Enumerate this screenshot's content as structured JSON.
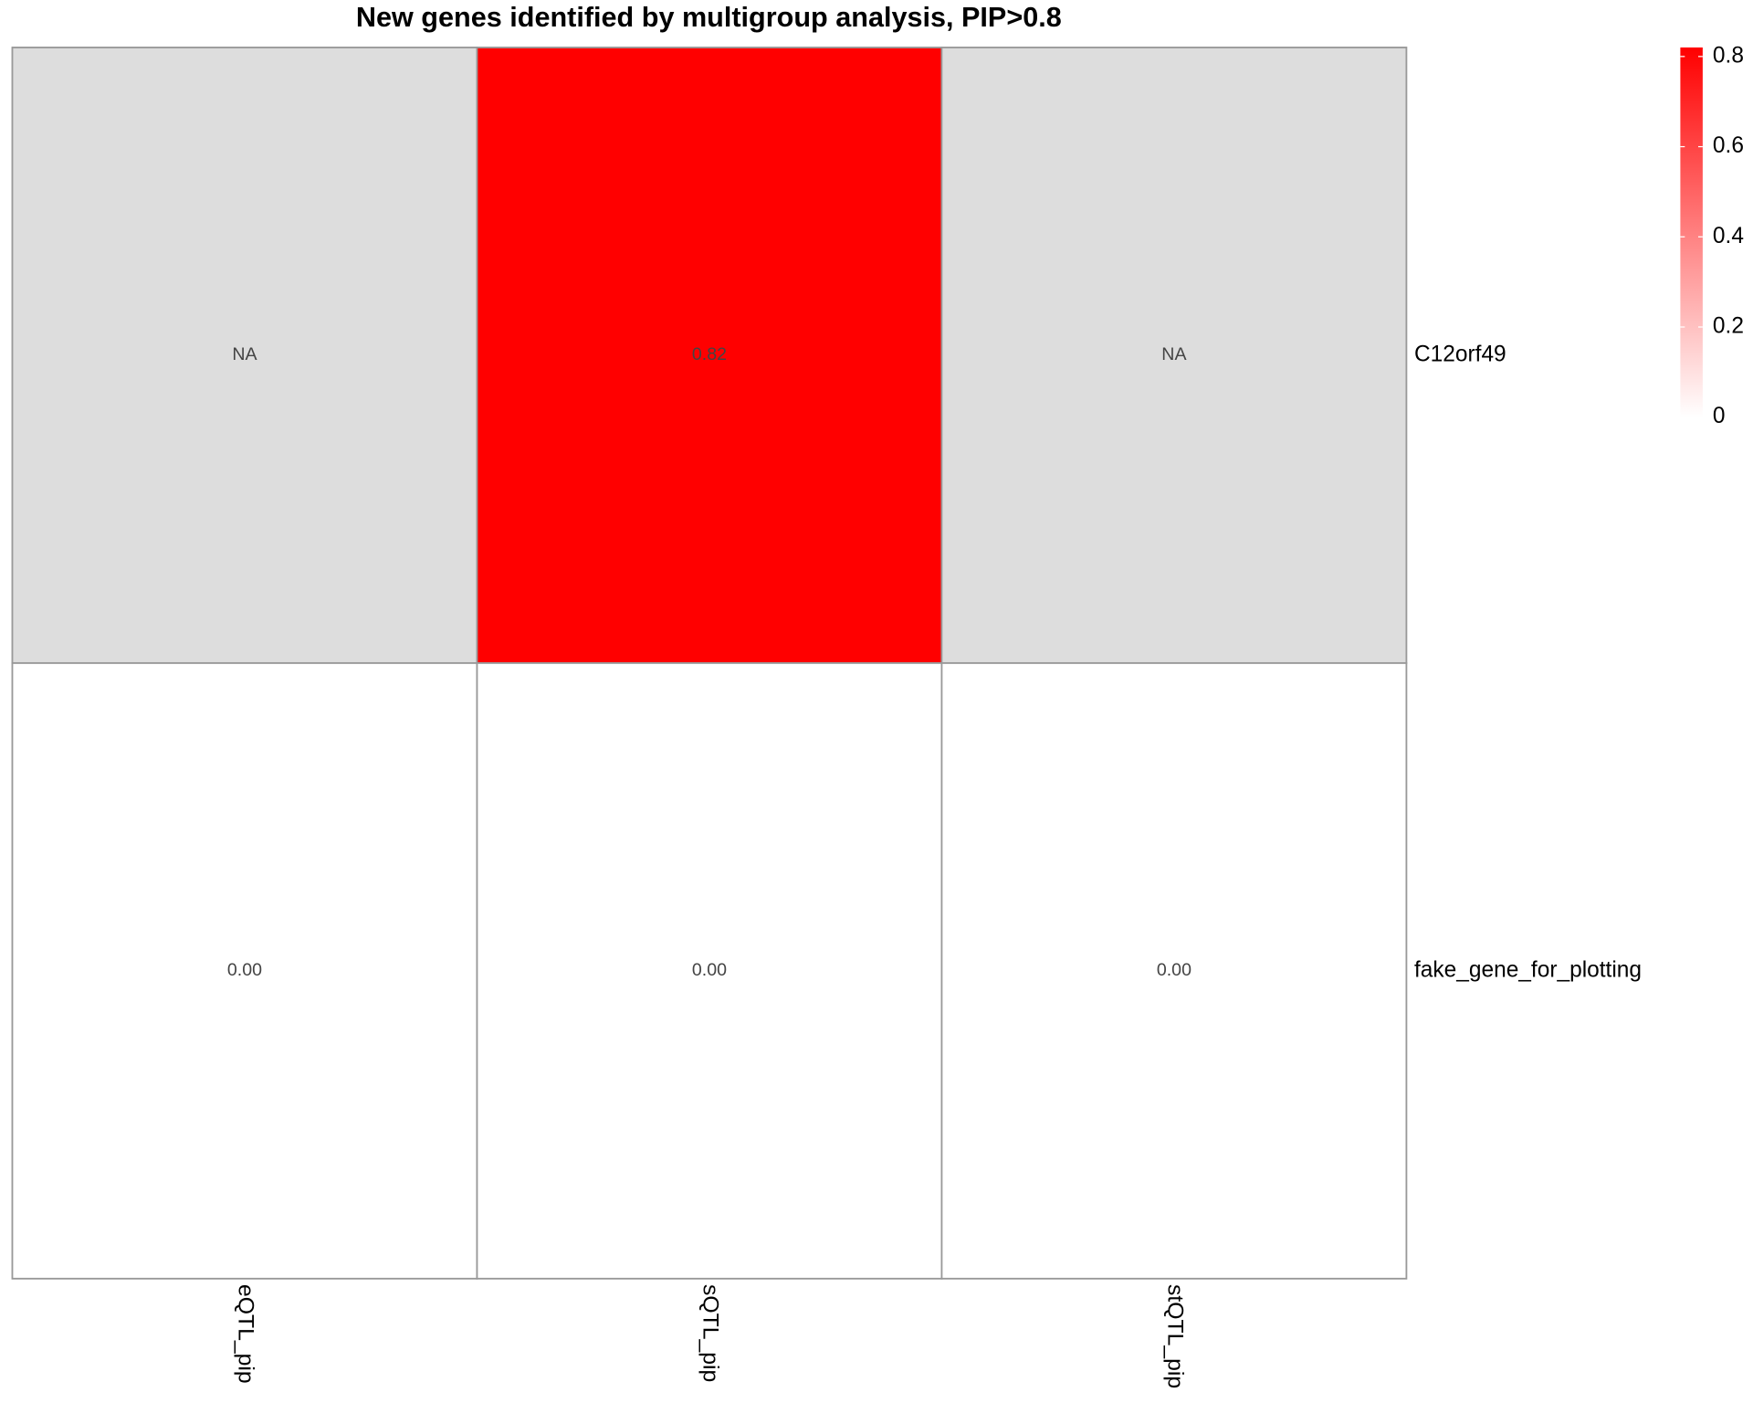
{
  "chart_data": {
    "type": "heatmap",
    "title": "New genes identified by multigroup analysis, PIP>0.8",
    "columns": [
      "eQTL_pip",
      "sQTL_pip",
      "stQTL_pip"
    ],
    "rows": [
      "C12orf49",
      "fake_gene_for_plotting"
    ],
    "values": [
      [
        null,
        0.82,
        null
      ],
      [
        0,
        0,
        0
      ]
    ],
    "value_labels": [
      [
        "NA",
        "0.82",
        "NA"
      ],
      [
        "0.00",
        "0.00",
        "0.00"
      ]
    ],
    "low_color": "#ffffff",
    "high_color": "#ff0000",
    "na_color": "#dddddd",
    "clim": [
      0,
      0.82
    ],
    "cticks": [
      0,
      0.2,
      0.4,
      0.6,
      0.8
    ]
  }
}
